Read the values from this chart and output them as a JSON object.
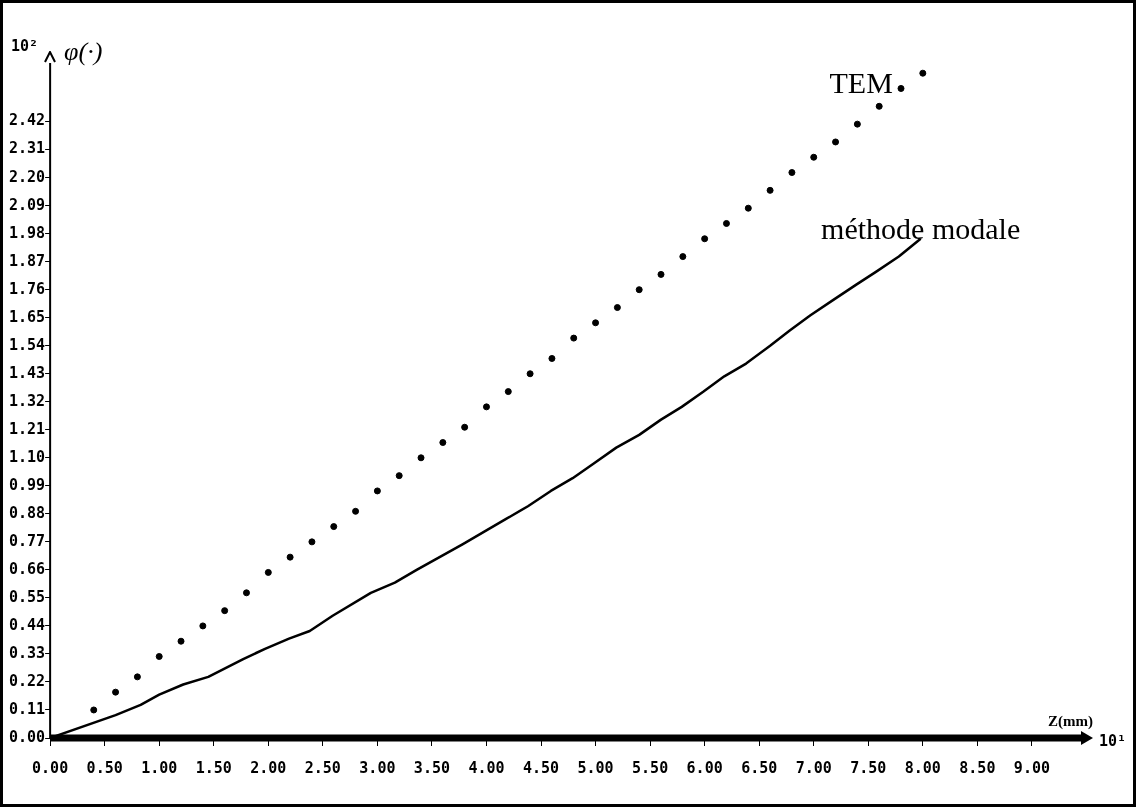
{
  "chart_data": {
    "type": "line",
    "xlabel": "Z(mm)",
    "ylabel": "φ(·)",
    "annotations": [
      "10²",
      "10¹"
    ],
    "xlim": [
      0,
      9.45
    ],
    "ylim": [
      0,
      2.65
    ],
    "xticks": [
      {
        "value": 0,
        "label": "0.00"
      },
      {
        "value": 0.5,
        "label": "0.50"
      },
      {
        "value": 1,
        "label": "1.00"
      },
      {
        "value": 1.5,
        "label": "1.50"
      },
      {
        "value": 2,
        "label": "2.00"
      },
      {
        "value": 2.5,
        "label": "2.50"
      },
      {
        "value": 3,
        "label": "3.00"
      },
      {
        "value": 3.5,
        "label": "3.50"
      },
      {
        "value": 4,
        "label": "4.00"
      },
      {
        "value": 4.5,
        "label": "4.50"
      },
      {
        "value": 5,
        "label": "5.00"
      },
      {
        "value": 5.5,
        "label": "5.50"
      },
      {
        "value": 6,
        "label": "6.00"
      },
      {
        "value": 6.5,
        "label": "6.50"
      },
      {
        "value": 7,
        "label": "7.00"
      },
      {
        "value": 7.5,
        "label": "7.50"
      },
      {
        "value": 8,
        "label": "8.00"
      },
      {
        "value": 8.5,
        "label": "8.50"
      },
      {
        "value": 9,
        "label": "9.00"
      }
    ],
    "yticks": [
      {
        "value": 0,
        "label": "0.00"
      },
      0.11,
      0.22,
      0.33,
      0.44,
      0.55,
      0.66,
      0.77,
      0.88,
      0.99,
      {
        "value": 1.1,
        "label": "1.10"
      },
      1.21,
      1.32,
      1.43,
      1.54,
      1.65,
      1.76,
      1.87,
      1.98,
      2.09,
      {
        "value": 2.2,
        "label": "2.20"
      },
      2.31,
      2.42
    ],
    "grid": false,
    "legend": false,
    "series": [
      {
        "name": "TEM",
        "type": "scatter",
        "marker": "circle",
        "color": "#000000",
        "x": [
          0.4,
          0.6,
          0.8,
          1.0,
          1.2,
          1.4,
          1.6,
          1.8,
          2.0,
          2.2,
          2.4,
          2.6,
          2.8,
          3.0,
          3.2,
          3.4,
          3.6,
          3.8,
          4.0,
          4.2,
          4.4,
          4.6,
          4.8,
          5.0,
          5.2,
          5.4,
          5.6,
          5.8,
          6.0,
          6.2,
          6.4,
          6.6,
          6.8,
          7.0,
          7.2,
          7.4,
          7.6,
          7.8,
          8.0
        ],
        "values": [
          0.11,
          0.18,
          0.24,
          0.32,
          0.38,
          0.44,
          0.5,
          0.57,
          0.65,
          0.71,
          0.77,
          0.83,
          0.89,
          0.97,
          1.03,
          1.1,
          1.16,
          1.22,
          1.3,
          1.36,
          1.43,
          1.49,
          1.57,
          1.63,
          1.69,
          1.76,
          1.82,
          1.89,
          1.96,
          2.02,
          2.08,
          2.15,
          2.22,
          2.28,
          2.34,
          2.41,
          2.48,
          2.55,
          2.61
        ]
      },
      {
        "name": "méthode modale",
        "type": "line",
        "marker": "none",
        "line_style": "solid",
        "color": "#000000",
        "x": [
          0,
          0.6,
          0.83,
          1.0,
          1.22,
          1.45,
          1.77,
          1.97,
          2.19,
          2.38,
          2.59,
          2.94,
          3.16,
          3.36,
          3.57,
          3.78,
          3.98,
          4.18,
          4.38,
          4.59,
          4.79,
          4.99,
          5.19,
          5.4,
          5.6,
          5.79,
          5.99,
          6.18,
          6.38,
          6.6,
          6.78,
          6.97,
          7.18,
          7.39,
          7.57,
          7.78,
          7.98
        ],
        "values": [
          0,
          0.09,
          0.13,
          0.17,
          0.21,
          0.24,
          0.31,
          0.35,
          0.39,
          0.42,
          0.48,
          0.57,
          0.61,
          0.66,
          0.71,
          0.76,
          0.81,
          0.86,
          0.91,
          0.97,
          1.02,
          1.08,
          1.14,
          1.19,
          1.25,
          1.3,
          1.36,
          1.42,
          1.47,
          1.54,
          1.6,
          1.66,
          1.72,
          1.78,
          1.83,
          1.89,
          1.96
        ]
      }
    ]
  }
}
